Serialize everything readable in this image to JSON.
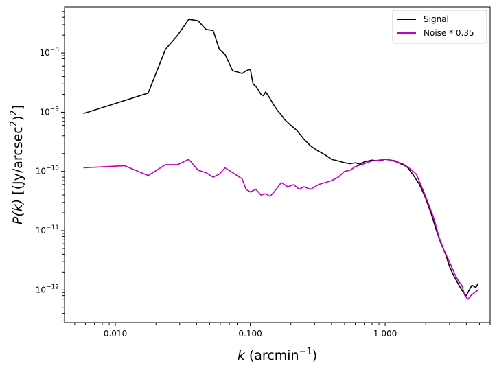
{
  "chart_data": {
    "type": "line",
    "xscale": "log",
    "yscale": "log",
    "xlim": [
      0.0042,
      6.0
    ],
    "ylim": [
      2.8e-13,
      6e-08
    ],
    "xlabel": {
      "var": "k",
      "unit_prefix": "(arcmin",
      "sup": "−1",
      "unit_suffix": ")"
    },
    "ylabel": {
      "var": "P(k)",
      "unit_prefix": "[(Jy/arcsec",
      "sup1": "2",
      "mid": ")",
      "sup2": "2",
      "unit_suffix": "]"
    },
    "xticks": [
      {
        "value": 0.01,
        "label": "0.010"
      },
      {
        "value": 0.1,
        "label": "0.100"
      },
      {
        "value": 1.0,
        "label": "1.000"
      }
    ],
    "yticks": [
      {
        "value": 1e-12,
        "label": "10",
        "sup": "−12"
      },
      {
        "value": 1e-11,
        "label": "10",
        "sup": "−11"
      },
      {
        "value": 1e-10,
        "label": "10",
        "sup": "−10"
      },
      {
        "value": 1e-09,
        "label": "10",
        "sup": "−9"
      },
      {
        "value": 1e-08,
        "label": "10",
        "sup": "−8"
      }
    ],
    "legend_position": "top-right",
    "grid": false,
    "series": [
      {
        "name": "Signal",
        "color": "#000000",
        "x": [
          0.0058,
          0.0175,
          0.0235,
          0.029,
          0.035,
          0.041,
          0.047,
          0.053,
          0.059,
          0.065,
          0.074,
          0.08,
          0.087,
          0.093,
          0.1,
          0.105,
          0.112,
          0.12,
          0.125,
          0.13,
          0.14,
          0.15,
          0.16,
          0.17,
          0.18,
          0.2,
          0.22,
          0.25,
          0.28,
          0.32,
          0.36,
          0.4,
          0.45,
          0.5,
          0.55,
          0.6,
          0.65,
          0.7,
          0.8,
          0.9,
          1.0,
          1.1,
          1.2,
          1.3,
          1.45,
          1.6,
          1.8,
          2.0,
          2.2,
          2.4,
          2.6,
          2.8,
          3.0,
          3.2,
          3.4,
          3.6,
          3.8,
          4.0,
          4.2,
          4.4,
          4.7,
          4.9
        ],
        "y": [
          9.5e-10,
          2.1e-09,
          1.15e-08,
          2e-08,
          3.7e-08,
          3.5e-08,
          2.5e-08,
          2.4e-08,
          1.15e-08,
          9.5e-09,
          5e-09,
          4.8e-09,
          4.5e-09,
          5e-09,
          5.3e-09,
          3e-09,
          2.6e-09,
          2e-09,
          1.9e-09,
          2.2e-09,
          1.7e-09,
          1.3e-09,
          1.05e-09,
          9e-10,
          7.5e-10,
          6e-10,
          5e-10,
          3.5e-10,
          2.7e-10,
          2.2e-10,
          1.9e-10,
          1.6e-10,
          1.5e-10,
          1.4e-10,
          1.35e-10,
          1.4e-10,
          1.32e-10,
          1.45e-10,
          1.55e-10,
          1.5e-10,
          1.6e-10,
          1.55e-10,
          1.5e-10,
          1.35e-10,
          1.2e-10,
          9e-11,
          6e-11,
          3.5e-11,
          1.9e-11,
          1e-11,
          6e-12,
          4e-12,
          2.5e-12,
          1.8e-12,
          1.4e-12,
          1.1e-12,
          9e-13,
          8e-13,
          1e-12,
          1.2e-12,
          1.1e-12,
          1.3e-12
        ]
      },
      {
        "name": "Noise * 0.35",
        "color": "#bf00bf",
        "x": [
          0.0058,
          0.0117,
          0.0175,
          0.0235,
          0.029,
          0.035,
          0.041,
          0.047,
          0.053,
          0.059,
          0.065,
          0.074,
          0.08,
          0.087,
          0.093,
          0.1,
          0.11,
          0.12,
          0.13,
          0.14,
          0.15,
          0.17,
          0.19,
          0.21,
          0.23,
          0.25,
          0.28,
          0.32,
          0.36,
          0.4,
          0.45,
          0.5,
          0.55,
          0.6,
          0.7,
          0.8,
          0.9,
          1.0,
          1.1,
          1.2,
          1.35,
          1.5,
          1.7,
          1.9,
          2.1,
          2.3,
          2.5,
          2.7,
          2.9,
          3.1,
          3.3,
          3.5,
          3.7,
          3.9,
          4.1,
          4.3,
          4.6,
          4.9
        ],
        "y": [
          1.15e-10,
          1.25e-10,
          8.5e-11,
          1.3e-10,
          1.3e-10,
          1.6e-10,
          1.05e-10,
          9.5e-11,
          8e-11,
          9e-11,
          1.15e-10,
          9.5e-11,
          8.5e-11,
          7.5e-11,
          5e-11,
          4.5e-11,
          5e-11,
          4e-11,
          4.2e-11,
          3.8e-11,
          4.5e-11,
          6.5e-11,
          5.5e-11,
          6e-11,
          5e-11,
          5.5e-11,
          5e-11,
          6e-11,
          6.5e-11,
          7e-11,
          8e-11,
          1e-10,
          1.05e-10,
          1.2e-10,
          1.35e-10,
          1.5e-10,
          1.55e-10,
          1.6e-10,
          1.55e-10,
          1.45e-10,
          1.35e-10,
          1.15e-10,
          9e-11,
          5e-11,
          2.8e-11,
          1.6e-11,
          8e-12,
          5e-12,
          3.5e-12,
          2.5e-12,
          1.8e-12,
          1.4e-12,
          1.2e-12,
          8e-13,
          7e-13,
          8e-13,
          9e-13,
          1e-12
        ]
      }
    ]
  }
}
